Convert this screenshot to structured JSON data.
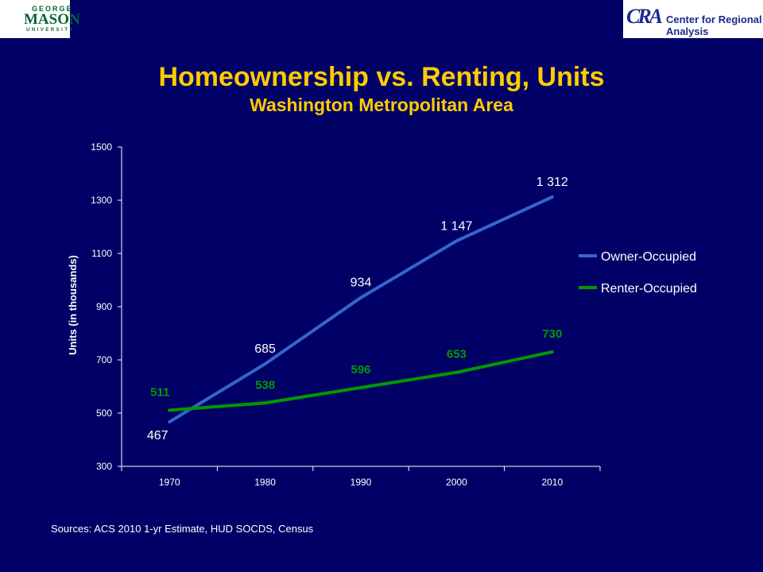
{
  "logos": {
    "left": {
      "line1": "GEORGE",
      "line2": "MASON",
      "line3": "UNIVERSITY"
    },
    "right": {
      "mark": "CRA",
      "text": "Center for Regional Analysis"
    }
  },
  "sources": "Sources:  ACS 2010 1-yr Estimate, HUD SOCDS, Census",
  "chart_data": {
    "type": "line",
    "title": "Homeownership vs. Renting, Units",
    "subtitle": "Washington Metropolitan Area",
    "xlabel": "",
    "ylabel": "Units (in thousands)",
    "categories": [
      "1970",
      "1980",
      "1990",
      "2000",
      "2010"
    ],
    "ylim": [
      300,
      1500
    ],
    "yticks": [
      300,
      500,
      700,
      900,
      1100,
      1300,
      1500
    ],
    "grid": false,
    "legend": "right",
    "series": [
      {
        "name": "Owner-Occupied",
        "color": "#3366cc",
        "label_color": "#ffffff",
        "values": [
          467,
          685,
          934,
          1147,
          1312
        ],
        "labels": [
          "467",
          "685",
          "934",
          "1 147",
          "1 312"
        ]
      },
      {
        "name": "Renter-Occupied",
        "color": "#009900",
        "label_color": "#009900",
        "values": [
          511,
          538,
          596,
          653,
          730
        ],
        "labels": [
          "511",
          "538",
          "596",
          "653",
          "730"
        ]
      }
    ]
  }
}
